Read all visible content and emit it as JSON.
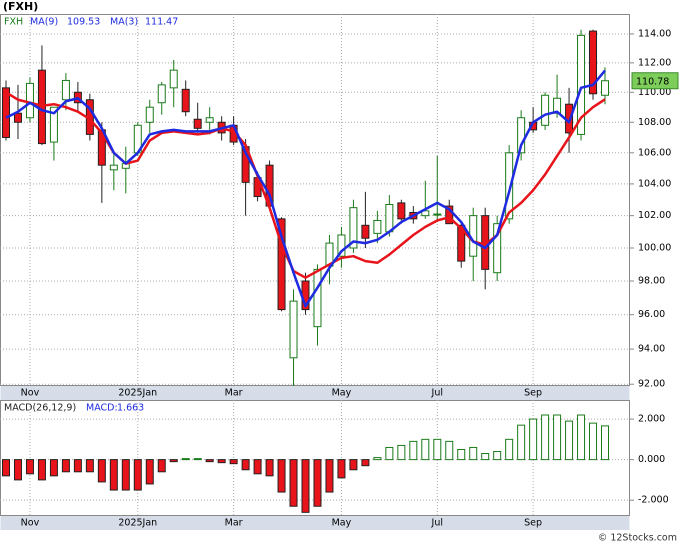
{
  "chart_data": [
    {
      "type": "candlestick",
      "title": "(FXH)",
      "symbol": "FXH",
      "log": true,
      "grid": true,
      "up_color": "#1a7a1a",
      "down_color": "#e8141b",
      "price_tag_color": "#7ccd5a",
      "categories": [
        null,
        null,
        "Nov",
        null,
        null,
        null,
        null,
        null,
        null,
        null,
        null,
        "2025Jan",
        null,
        null,
        null,
        null,
        null,
        null,
        null,
        "Mar",
        null,
        null,
        null,
        null,
        null,
        null,
        null,
        null,
        "May",
        null,
        null,
        null,
        null,
        null,
        null,
        null,
        "Jul",
        null,
        null,
        null,
        null,
        null,
        null,
        null,
        "Sep",
        null,
        null,
        null,
        null,
        null,
        null
      ],
      "open": [
        110.3,
        108.6,
        108.3,
        111.5,
        106.7,
        109.5,
        110.0,
        109.5,
        107.5,
        104.9,
        105.0,
        106.0,
        108.0,
        109.3,
        110.3,
        110.2,
        108.2,
        108.0,
        108.0,
        107.8,
        106.4,
        104.4,
        105.2,
        101.8,
        93.5,
        98.0,
        95.3,
        98.9,
        99.5,
        100.0,
        101.4,
        100.9,
        101.0,
        102.8,
        102.2,
        102.0,
        102.1,
        102.6,
        101.4,
        99.5,
        102.0,
        98.5,
        101.8,
        106.0,
        108.0,
        107.8,
        108.6,
        109.2,
        107.2,
        114.2,
        109.8
      ],
      "high": [
        110.8,
        110.5,
        111.0,
        113.2,
        109.0,
        111.3,
        110.7,
        109.9,
        108.0,
        106.0,
        106.4,
        108.0,
        109.5,
        110.7,
        112.2,
        110.8,
        109.3,
        109.0,
        108.4,
        108.4,
        106.9,
        104.8,
        105.5,
        101.9,
        97.5,
        98.5,
        99.0,
        100.8,
        101.3,
        103.0,
        103.5,
        102.3,
        103.3,
        103.0,
        102.6,
        104.2,
        105.8,
        103.0,
        101.6,
        102.5,
        102.5,
        102.0,
        106.5,
        108.8,
        109.0,
        110.0,
        111.2,
        110.3,
        114.3,
        114.3,
        111.7
      ],
      "low": [
        106.8,
        106.9,
        108.0,
        106.5,
        105.5,
        108.8,
        108.7,
        106.8,
        102.8,
        103.6,
        103.4,
        105.8,
        107.3,
        108.5,
        109.0,
        108.4,
        107.3,
        107.2,
        106.8,
        106.5,
        102.0,
        102.9,
        102.4,
        96.2,
        91.9,
        96.0,
        94.2,
        97.8,
        98.8,
        99.7,
        100.0,
        100.3,
        100.7,
        101.5,
        101.5,
        101.8,
        101.6,
        101.5,
        98.8,
        98.0,
        97.5,
        98.0,
        101.5,
        105.5,
        107.3,
        107.5,
        108.3,
        106.0,
        106.8,
        109.5,
        109.2
      ],
      "close": [
        107.0,
        108.0,
        110.6,
        106.6,
        109.0,
        110.8,
        109.3,
        107.2,
        105.2,
        105.2,
        105.3,
        107.8,
        109.0,
        110.5,
        111.5,
        108.7,
        107.6,
        108.3,
        107.3,
        106.7,
        104.1,
        103.2,
        102.6,
        96.3,
        96.8,
        96.3,
        98.7,
        100.3,
        100.8,
        102.5,
        100.6,
        101.7,
        102.7,
        101.8,
        101.8,
        102.3,
        102.1,
        101.5,
        99.2,
        102.0,
        98.7,
        101.5,
        106.0,
        108.3,
        107.5,
        109.8,
        109.6,
        107.3,
        113.9,
        109.9,
        110.78
      ],
      "series": [
        {
          "name": "MA(9)",
          "color": "#e8141b",
          "values": [
            110.0,
            109.5,
            109.3,
            109.1,
            109.2,
            109.0,
            108.7,
            108.2,
            107.3,
            106.0,
            105.3,
            105.5,
            106.8,
            107.3,
            107.4,
            107.3,
            107.2,
            107.3,
            107.6,
            107.4,
            106.5,
            104.5,
            102.5,
            100.2,
            98.6,
            98.2,
            98.6,
            99.0,
            99.4,
            99.5,
            99.2,
            99.1,
            99.6,
            100.2,
            100.8,
            101.3,
            101.7,
            101.9,
            101.2,
            100.4,
            100.2,
            100.8,
            102.2,
            102.8,
            103.6,
            104.6,
            105.8,
            107.0,
            108.3,
            109.0,
            109.53
          ]
        },
        {
          "name": "MA(3)",
          "color": "#1e2be0",
          "values": [
            108.3,
            108.7,
            109.3,
            108.8,
            108.6,
            109.4,
            109.6,
            108.9,
            107.6,
            106.0,
            105.3,
            106.0,
            107.2,
            107.4,
            107.5,
            107.4,
            107.4,
            107.4,
            107.6,
            107.8,
            106.0,
            104.6,
            103.3,
            100.7,
            98.5,
            96.5,
            97.6,
            98.8,
            99.8,
            100.4,
            100.3,
            100.5,
            101.0,
            101.6,
            102.0,
            102.4,
            102.8,
            102.4,
            101.6,
            100.4,
            100.0,
            100.8,
            103.5,
            106.5,
            108.0,
            108.5,
            108.7,
            108.0,
            110.3,
            110.5,
            111.47
          ]
        }
      ],
      "ylim": [
        91.9,
        115.4
      ],
      "yticks": [
        {
          "value": 92,
          "label": "92.00"
        },
        {
          "value": 94,
          "label": "94.00"
        },
        {
          "value": 96,
          "label": "96.00"
        },
        {
          "value": 98,
          "label": "98.00"
        },
        {
          "value": 100,
          "label": "100.00"
        },
        {
          "value": 102,
          "label": "102.00"
        },
        {
          "value": 104,
          "label": "104.00"
        },
        {
          "value": 106,
          "label": "106.00"
        },
        {
          "value": 108,
          "label": "108.00"
        },
        {
          "value": 110,
          "label": "110.00"
        },
        {
          "value": 112,
          "label": "112.00"
        },
        {
          "value": 114,
          "label": "114.00"
        }
      ]
    },
    {
      "type": "bar",
      "title": "MACD(26,12,9)",
      "grid": true,
      "categories": [
        null,
        null,
        "Nov",
        null,
        null,
        null,
        null,
        null,
        null,
        null,
        null,
        "2025Jan",
        null,
        null,
        null,
        null,
        null,
        null,
        null,
        "Mar",
        null,
        null,
        null,
        null,
        null,
        null,
        null,
        null,
        "May",
        null,
        null,
        null,
        null,
        null,
        null,
        null,
        "Jul",
        null,
        null,
        null,
        null,
        null,
        null,
        null,
        "Sep",
        null,
        null,
        null,
        null,
        null,
        null
      ],
      "series": [
        {
          "name": "MACD:",
          "color": "#1a7a1a",
          "negative_color": "#e8141b",
          "values": [
            -0.8,
            -1.0,
            -0.7,
            -1.0,
            -0.8,
            -0.6,
            -0.6,
            -0.6,
            -1.1,
            -1.5,
            -1.5,
            -1.5,
            -1.2,
            -0.6,
            -0.1,
            0.05,
            0.05,
            -0.1,
            -0.15,
            -0.2,
            -0.5,
            -0.7,
            -0.8,
            -1.6,
            -2.3,
            -2.6,
            -2.3,
            -1.6,
            -0.9,
            -0.5,
            -0.3,
            0.1,
            0.6,
            0.7,
            0.9,
            1.0,
            1.0,
            0.9,
            0.5,
            0.6,
            0.3,
            0.4,
            1.0,
            1.7,
            2.0,
            2.2,
            2.2,
            1.9,
            2.2,
            1.8,
            1.663
          ]
        }
      ],
      "ylim": [
        -2.78,
        2.94
      ],
      "yticks": [
        {
          "value": 2,
          "label": "2.000"
        },
        {
          "value": 0,
          "label": "0.000"
        },
        {
          "value": -2,
          "label": "-2.000"
        }
      ]
    }
  ],
  "footer": "© 12Stocks.com"
}
